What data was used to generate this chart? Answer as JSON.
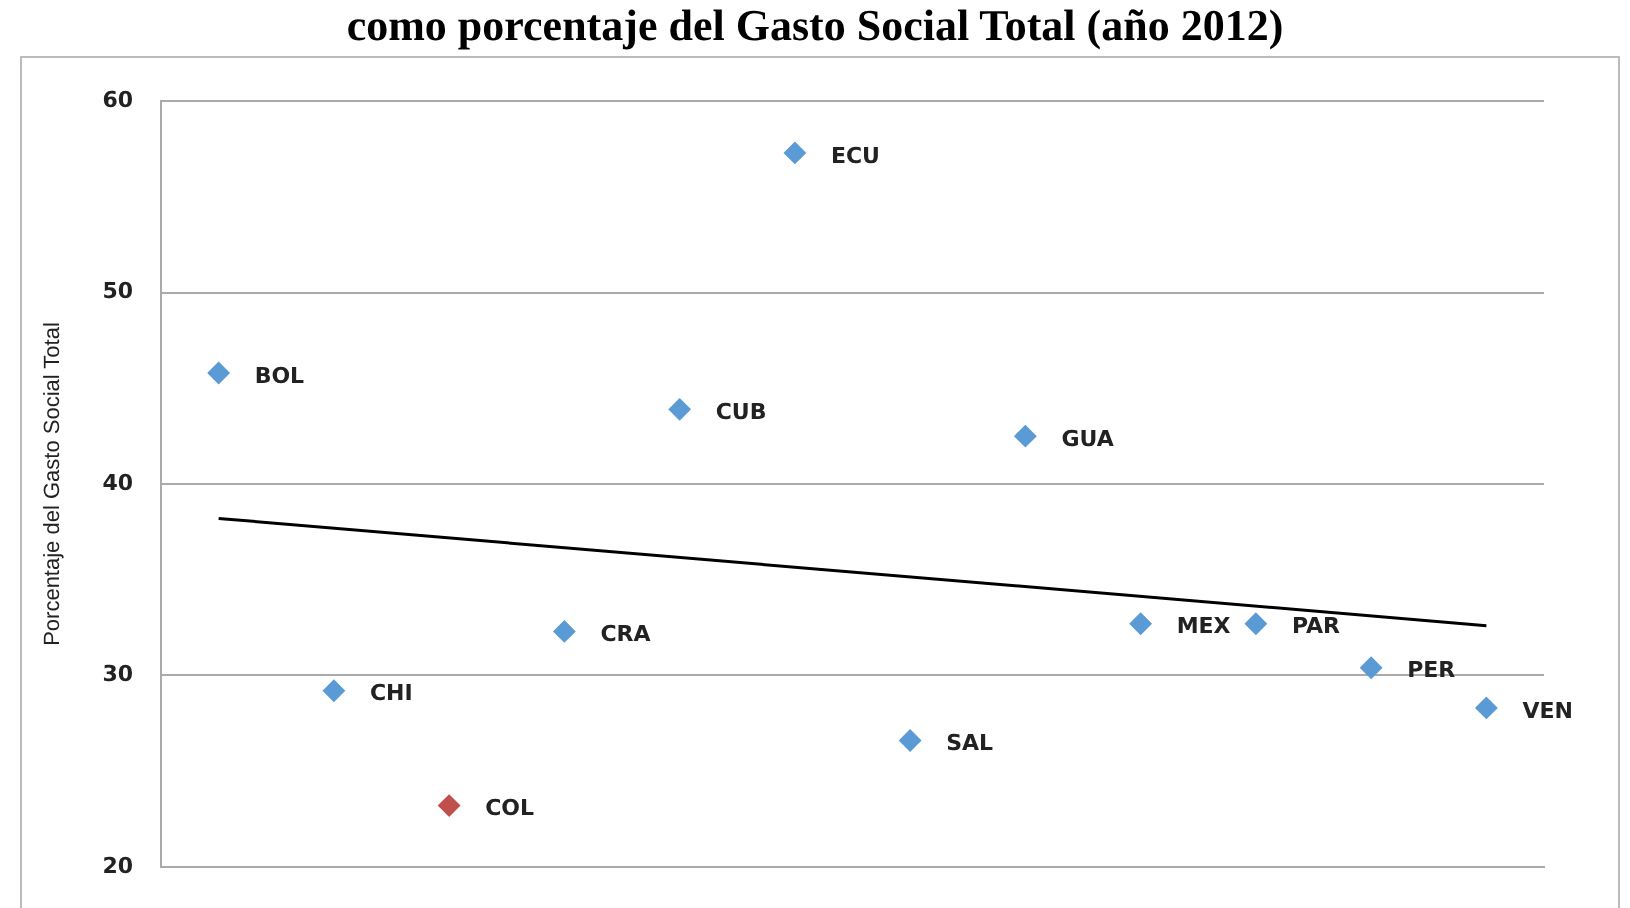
{
  "chart_data": {
    "type": "scatter",
    "title": "como porcentaje del Gasto Social Total (año 2012)",
    "ylabel": "Porcentaje del Gasto Social Total",
    "categories": [
      null,
      null,
      null,
      null,
      null,
      null,
      null,
      null,
      null,
      null,
      null,
      null
    ],
    "series": [
      {
        "marker": "diamond",
        "color": "#5b9bd5",
        "colors": [
          "#5b9bd5",
          "#5b9bd5",
          "#c0504d",
          "#5b9bd5",
          "#5b9bd5",
          "#5b9bd5",
          "#5b9bd5",
          "#5b9bd5",
          "#5b9bd5",
          "#5b9bd5",
          "#5b9bd5",
          "#5b9bd5"
        ],
        "values": [
          45.8,
          29.2,
          23.2,
          32.3,
          43.9,
          57.3,
          26.6,
          42.5,
          32.7,
          32.7,
          30.4,
          28.3
        ],
        "value_labels": [
          "BOL",
          "CHI",
          "COL",
          "CRA",
          "CUB",
          "ECU",
          "SAL",
          "GUA",
          "MEX",
          "PAR",
          "PER",
          "VEN"
        ]
      },
      {
        "type": "line",
        "color": "#000000",
        "values": [
          38.2,
          null,
          null,
          null,
          null,
          null,
          null,
          null,
          null,
          null,
          null,
          32.6
        ]
      }
    ],
    "ylim": [
      20,
      60
    ],
    "yticks": [
      20,
      30,
      40,
      50,
      60
    ],
    "grid": "y",
    "legend": false,
    "tick_labels": "y"
  }
}
